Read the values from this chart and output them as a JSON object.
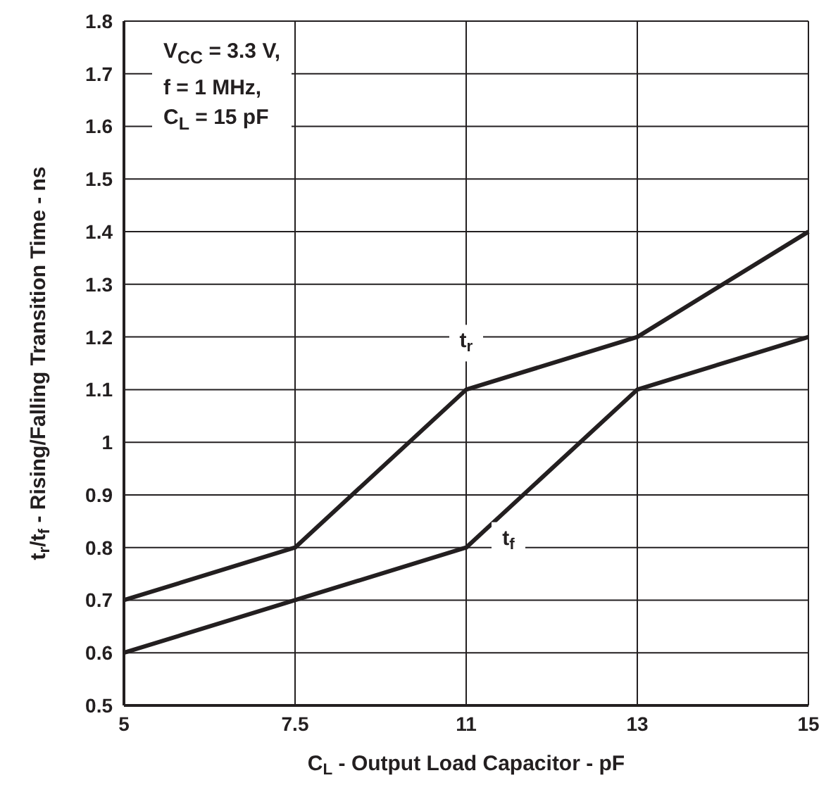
{
  "chart_data": {
    "type": "line",
    "xlabel": "C$_{L}$ - Output Load Capacitor - pF",
    "ylabel": "t$_{r}$/t$_{f}$ - Rising/Falling Transition Time - ns",
    "categories": [
      "5",
      "7.5",
      "11",
      "13",
      "15"
    ],
    "series": [
      {
        "name": "t$_{r}$",
        "color": "#231f20",
        "values": [
          0.7,
          0.8,
          1.1,
          1.2,
          1.4
        ]
      },
      {
        "name": "t$_{f}$",
        "color": "#231f20",
        "values": [
          0.6,
          0.7,
          0.8,
          1.1,
          1.2
        ]
      }
    ],
    "ylim": [
      0.5,
      1.8
    ],
    "yticks": [
      0.5,
      0.6,
      0.7,
      0.8,
      0.9,
      1,
      1.1,
      1.2,
      1.3,
      1.4,
      1.5,
      1.6,
      1.7,
      1.8
    ],
    "grid": true,
    "legend": false,
    "marker": "none",
    "line_style": "solid",
    "annotations": [
      "V$_{CC}$ = 3.3 V,\nf = 1 MHz,\nC$_{L}$ = 15 pF"
    ]
  }
}
